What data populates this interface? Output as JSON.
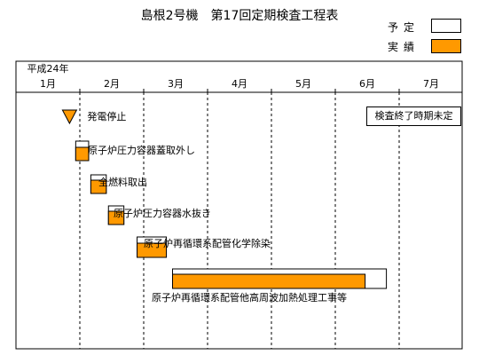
{
  "chart_data": {
    "type": "gantt",
    "title": "島根2号機　第17回定期検査工程表",
    "legend": [
      {
        "label": "予定",
        "color": "#ffffff"
      },
      {
        "label": "実績",
        "color": "#ff9900"
      }
    ],
    "year_label": "平成24年",
    "months": [
      "1月",
      "2月",
      "3月",
      "4月",
      "5月",
      "6月",
      "7月"
    ],
    "milestone": {
      "label": "発電停止",
      "date": "2012-01-27"
    },
    "tasks": [
      {
        "name": "原子炉圧力容器蓋取外し",
        "planned_start": "2012-01-30",
        "planned_end": "2012-02-05",
        "actual_end": "2012-02-05"
      },
      {
        "name": "全燃料取出",
        "planned_start": "2012-02-06",
        "planned_end": "2012-02-13",
        "actual_end": "2012-02-13"
      },
      {
        "name": "原子炉圧力容器水抜き",
        "planned_start": "2012-02-14",
        "planned_end": "2012-02-21",
        "actual_end": "2012-02-21"
      },
      {
        "name": "原子炉再循環系配管化学除染",
        "planned_start": "2012-02-27",
        "planned_end": "2012-03-12",
        "actual_end": "2012-03-12"
      },
      {
        "name": "原子炉再循環系配管他高周波加熱処理工事等",
        "planned_start": "2012-03-15",
        "planned_end": "2012-06-25",
        "actual_end": "2012-06-15"
      }
    ],
    "note": "検査終了時期未定"
  }
}
